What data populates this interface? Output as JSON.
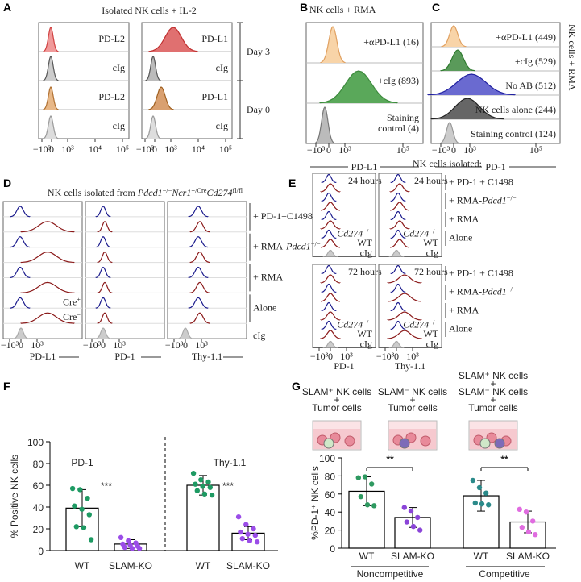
{
  "panels": {
    "A": {
      "letter": "A",
      "title": "Isolated NK cells + IL-2",
      "left_labels": [
        "PD-L2",
        "cIg",
        "PD-L2",
        "cIg"
      ],
      "right_labels": [
        "PD-L1",
        "cIg",
        "PD-L1",
        "cIg"
      ],
      "days": [
        "Day 3",
        "Day 0"
      ],
      "x_ticks": [
        "−10³",
        "0",
        "10³",
        "10⁴",
        "10⁵"
      ]
    },
    "B": {
      "letter": "B",
      "title": "NK cells + RMA",
      "labels": [
        "+αPD-L1 (16)",
        "+cIg (893)",
        "Staining",
        "control (4)"
      ],
      "x_ticks": [
        "−10³",
        "0",
        "10³",
        "10⁵"
      ],
      "x_label": "PD-L1"
    },
    "C": {
      "letter": "C",
      "side_label": "NK cells + RMA",
      "labels": [
        "+αPD-L1 (449)",
        "+cIg (529)",
        "No AB (512)",
        "NK cells alone (244)",
        "Staining control (124)"
      ],
      "x_ticks": [
        "−10³",
        "0",
        "10³",
        "10⁵"
      ],
      "x_label": "PD-1"
    },
    "D": {
      "letter": "D",
      "title": [
        "NK cells isolated from ",
        "Pdcd1",
        "−/−",
        "Ncr1",
        "+/Cre",
        "Cd274",
        "fl/fl"
      ],
      "conditions": [
        [
          "+ PD-1+C1498"
        ],
        [
          "+ RMA-",
          "Pdcd1",
          "−/−"
        ],
        [
          "+ RMA"
        ],
        [
          "Alone"
        ]
      ],
      "legend": [
        [
          "Cre",
          "+"
        ],
        [
          "Cre",
          "−"
        ]
      ],
      "control": "cIg",
      "x_labels": [
        "PD-L1",
        "PD-1",
        "Thy-1.1"
      ],
      "x_ticks": [
        "−10³",
        "0",
        "10³"
      ]
    },
    "E": {
      "letter": "E",
      "title": "NK cells isolated:",
      "times": [
        "24 hours",
        "72 hours"
      ],
      "conditions": [
        [
          "+ PD-1 + C1498"
        ],
        [
          "+ RMA-",
          "Pdcd1",
          "−/−"
        ],
        [
          "+ RMA"
        ],
        [
          "Alone"
        ]
      ],
      "legend": [
        [
          "Cd274",
          "−/−"
        ],
        [
          "WT"
        ]
      ],
      "control": "cIg",
      "x_labels": [
        "PD-1",
        "Thy-1.1"
      ],
      "x_ticks": [
        "−10³",
        "0",
        "10³"
      ]
    }
  },
  "chart_data": [
    {
      "type": "bar",
      "letter": "F",
      "y_label": "% Positive NK cells",
      "categories": [
        "WT",
        "SLAM-KO",
        "WT",
        "SLAM-KO"
      ],
      "colors": [
        "#1e9a63",
        "#9b4de8",
        "#1e9a63",
        "#9b4de8"
      ],
      "values": [
        39,
        6,
        60,
        16
      ],
      "errors": [
        17,
        4,
        9,
        6
      ],
      "points": [
        [
          57,
          56,
          48,
          41,
          38,
          33,
          22,
          21,
          10
        ],
        [
          12,
          9,
          7,
          6,
          5,
          4,
          3,
          2,
          2
        ],
        [
          71,
          65,
          63,
          61,
          59,
          58,
          55,
          52,
          51
        ],
        [
          31,
          24,
          20,
          17,
          15,
          14,
          11,
          9,
          8
        ]
      ],
      "groups": [
        "PD-1",
        "Thy-1.1"
      ],
      "annotations": [
        "***",
        "***"
      ],
      "ylim": [
        0,
        100
      ],
      "yticks": [
        0,
        20,
        40,
        60,
        80,
        100
      ]
    },
    {
      "type": "bar",
      "letter": "G",
      "y_label": "%PD-1⁺ NK cells",
      "categories": [
        "WT",
        "SLAM-KO",
        "WT",
        "SLAM-KO"
      ],
      "colors": [
        "#2e9960",
        "#8b45d8",
        "#2b8a8a",
        "#e06ce0"
      ],
      "values": [
        63,
        34,
        58,
        29
      ],
      "errors": [
        16,
        11,
        17,
        12
      ],
      "points": [
        [
          78,
          79,
          71,
          57,
          48,
          47
        ],
        [
          45,
          41,
          34,
          29,
          24,
          20
        ],
        [
          75,
          67,
          61,
          50,
          49,
          48
        ],
        [
          43,
          40,
          30,
          23,
          18,
          15
        ]
      ],
      "groups": [
        "Noncompetitive",
        "Competitive"
      ],
      "annotations": [
        "**",
        "**"
      ],
      "captions": [
        [
          "SLAM⁺ NK cells",
          "+",
          "Tumor cells"
        ],
        [
          "SLAM⁻ NK cells",
          "+",
          "Tumor cells"
        ],
        [
          "SLAM⁺ NK cells",
          "+",
          "SLAM⁻ NK cells",
          "+",
          "Tumor cells"
        ]
      ],
      "ylim": [
        0,
        100
      ],
      "yticks": [
        0,
        20,
        40,
        60,
        80,
        100
      ]
    }
  ]
}
